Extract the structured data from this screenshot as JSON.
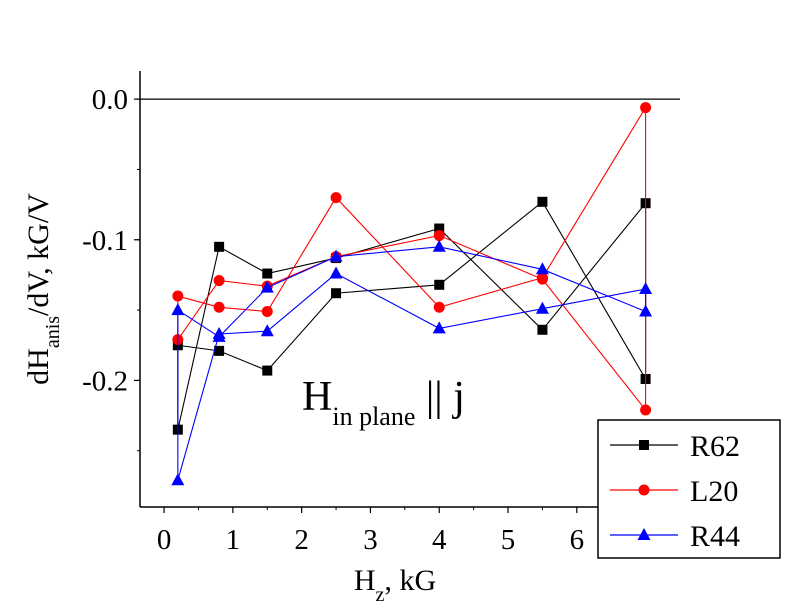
{
  "chart_data": {
    "type": "line",
    "title": "",
    "xlabel": {
      "main": "H",
      "sub": "z",
      "rest": ", kG"
    },
    "ylabel": {
      "main": "dH",
      "sub": "anis",
      "rest": "/dV, kG/V"
    },
    "annotation": {
      "main": "H",
      "sub": "in plane",
      "rest": " || j"
    },
    "xlim": [
      -0.35,
      7.5
    ],
    "ylim": [
      -0.29,
      0.02
    ],
    "x_ticks": [
      0,
      1,
      2,
      3,
      4,
      5,
      6
    ],
    "x_tick_labels": [
      "0",
      "1",
      "2",
      "3",
      "4",
      "5",
      "6"
    ],
    "y_ticks": [
      0.0,
      -0.1,
      -0.2
    ],
    "y_tick_labels": [
      "0.0",
      "-0.1",
      "-0.2"
    ],
    "reference_line": 0.0,
    "legend_position": "bottom-right",
    "series": [
      {
        "name": "R62",
        "color": "#000000",
        "marker": "square",
        "x": [
          0.2,
          0.2,
          0.8,
          1.5,
          2.5,
          4.0,
          5.5,
          7.0,
          7.0,
          5.5,
          4.0,
          2.5,
          1.5,
          0.8,
          0.2
        ],
        "y": [
          -0.175,
          -0.235,
          -0.105,
          -0.124,
          -0.113,
          -0.092,
          -0.164,
          -0.074,
          -0.199,
          -0.073,
          -0.132,
          -0.138,
          -0.193,
          -0.179,
          -0.175
        ]
      },
      {
        "name": "L20",
        "color": "#ff0000",
        "marker": "circle",
        "x": [
          0.2,
          0.2,
          0.8,
          1.5,
          2.5,
          4.0,
          5.5,
          7.0,
          7.0,
          5.5,
          4.0,
          2.5,
          1.5,
          0.8,
          0.2
        ],
        "y": [
          -0.14,
          -0.171,
          -0.129,
          -0.133,
          -0.112,
          -0.097,
          -0.128,
          -0.221,
          -0.006,
          -0.127,
          -0.148,
          -0.07,
          -0.151,
          -0.148,
          -0.14
        ]
      },
      {
        "name": "R44",
        "color": "#0000ff",
        "marker": "triangle",
        "x": [
          0.2,
          0.2,
          0.8,
          1.5,
          2.5,
          4.0,
          5.5,
          7.0,
          7.0,
          5.5,
          4.0,
          2.5,
          1.5,
          0.8,
          0.2
        ],
        "y": [
          -0.15,
          -0.271,
          -0.167,
          -0.165,
          -0.124,
          -0.163,
          -0.149,
          -0.135,
          -0.151,
          -0.121,
          -0.105,
          -0.112,
          -0.134,
          -0.169,
          -0.15
        ]
      }
    ]
  }
}
